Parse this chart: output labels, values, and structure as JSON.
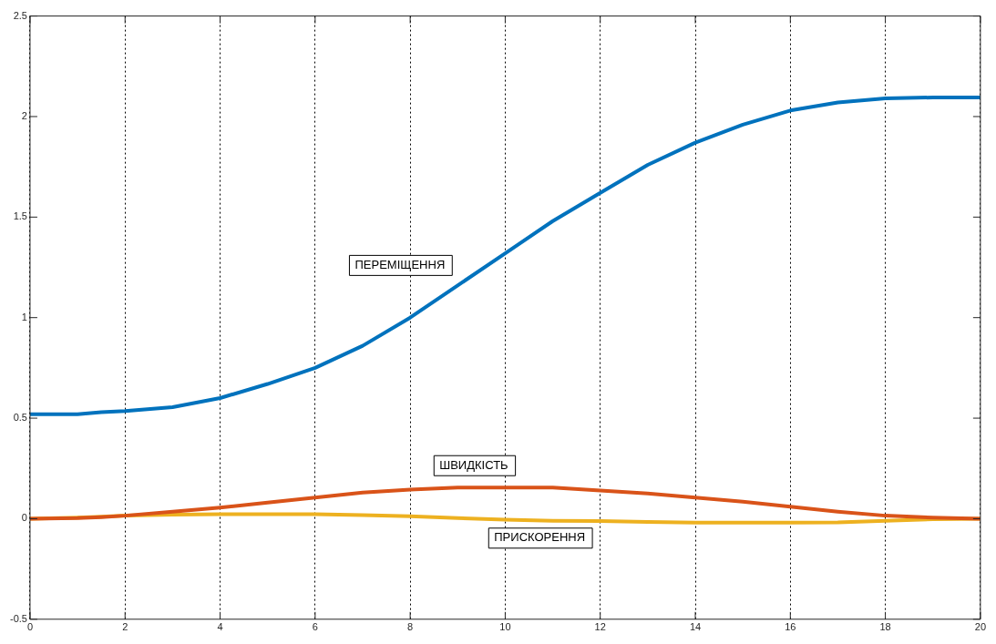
{
  "chart_data": {
    "type": "line",
    "x": [
      0,
      1,
      1.5,
      2,
      3,
      4,
      5,
      6,
      7,
      8,
      9,
      10,
      11,
      12,
      13,
      14,
      15,
      16,
      17,
      18,
      19,
      20
    ],
    "series": [
      {
        "name": "ПЕРЕМІЩЕННЯ",
        "color": "#0072bd",
        "values": [
          0.52,
          0.52,
          0.53,
          0.535,
          0.555,
          0.6,
          0.67,
          0.75,
          0.86,
          1.0,
          1.16,
          1.32,
          1.48,
          1.62,
          1.76,
          1.87,
          1.96,
          2.03,
          2.07,
          2.09,
          2.095,
          2.095
        ]
      },
      {
        "name": "ШВИДКІСТЬ",
        "color": "#d95319",
        "values": [
          0,
          0.003,
          0.008,
          0.015,
          0.035,
          0.055,
          0.08,
          0.105,
          0.13,
          0.145,
          0.155,
          0.155,
          0.155,
          0.14,
          0.125,
          0.105,
          0.085,
          0.06,
          0.035,
          0.015,
          0.005,
          0
        ]
      },
      {
        "name": "ПРИСКОРЕННЯ",
        "color": "#edb120",
        "values": [
          0,
          0.005,
          0.01,
          0.015,
          0.02,
          0.022,
          0.022,
          0.022,
          0.018,
          0.012,
          0.003,
          -0.005,
          -0.01,
          -0.012,
          -0.016,
          -0.02,
          -0.02,
          -0.02,
          -0.018,
          -0.01,
          -0.003,
          0
        ]
      }
    ],
    "xlim": [
      0,
      20
    ],
    "xticks": [
      0,
      2,
      4,
      6,
      8,
      10,
      12,
      14,
      16,
      18,
      20
    ],
    "ylim": [
      -0.5,
      2.5
    ],
    "yticks": [
      -0.5,
      0,
      0.5,
      1,
      1.5,
      2,
      2.5
    ],
    "grid": "x",
    "legend": false,
    "marker": "none",
    "line_style": "solid"
  }
}
